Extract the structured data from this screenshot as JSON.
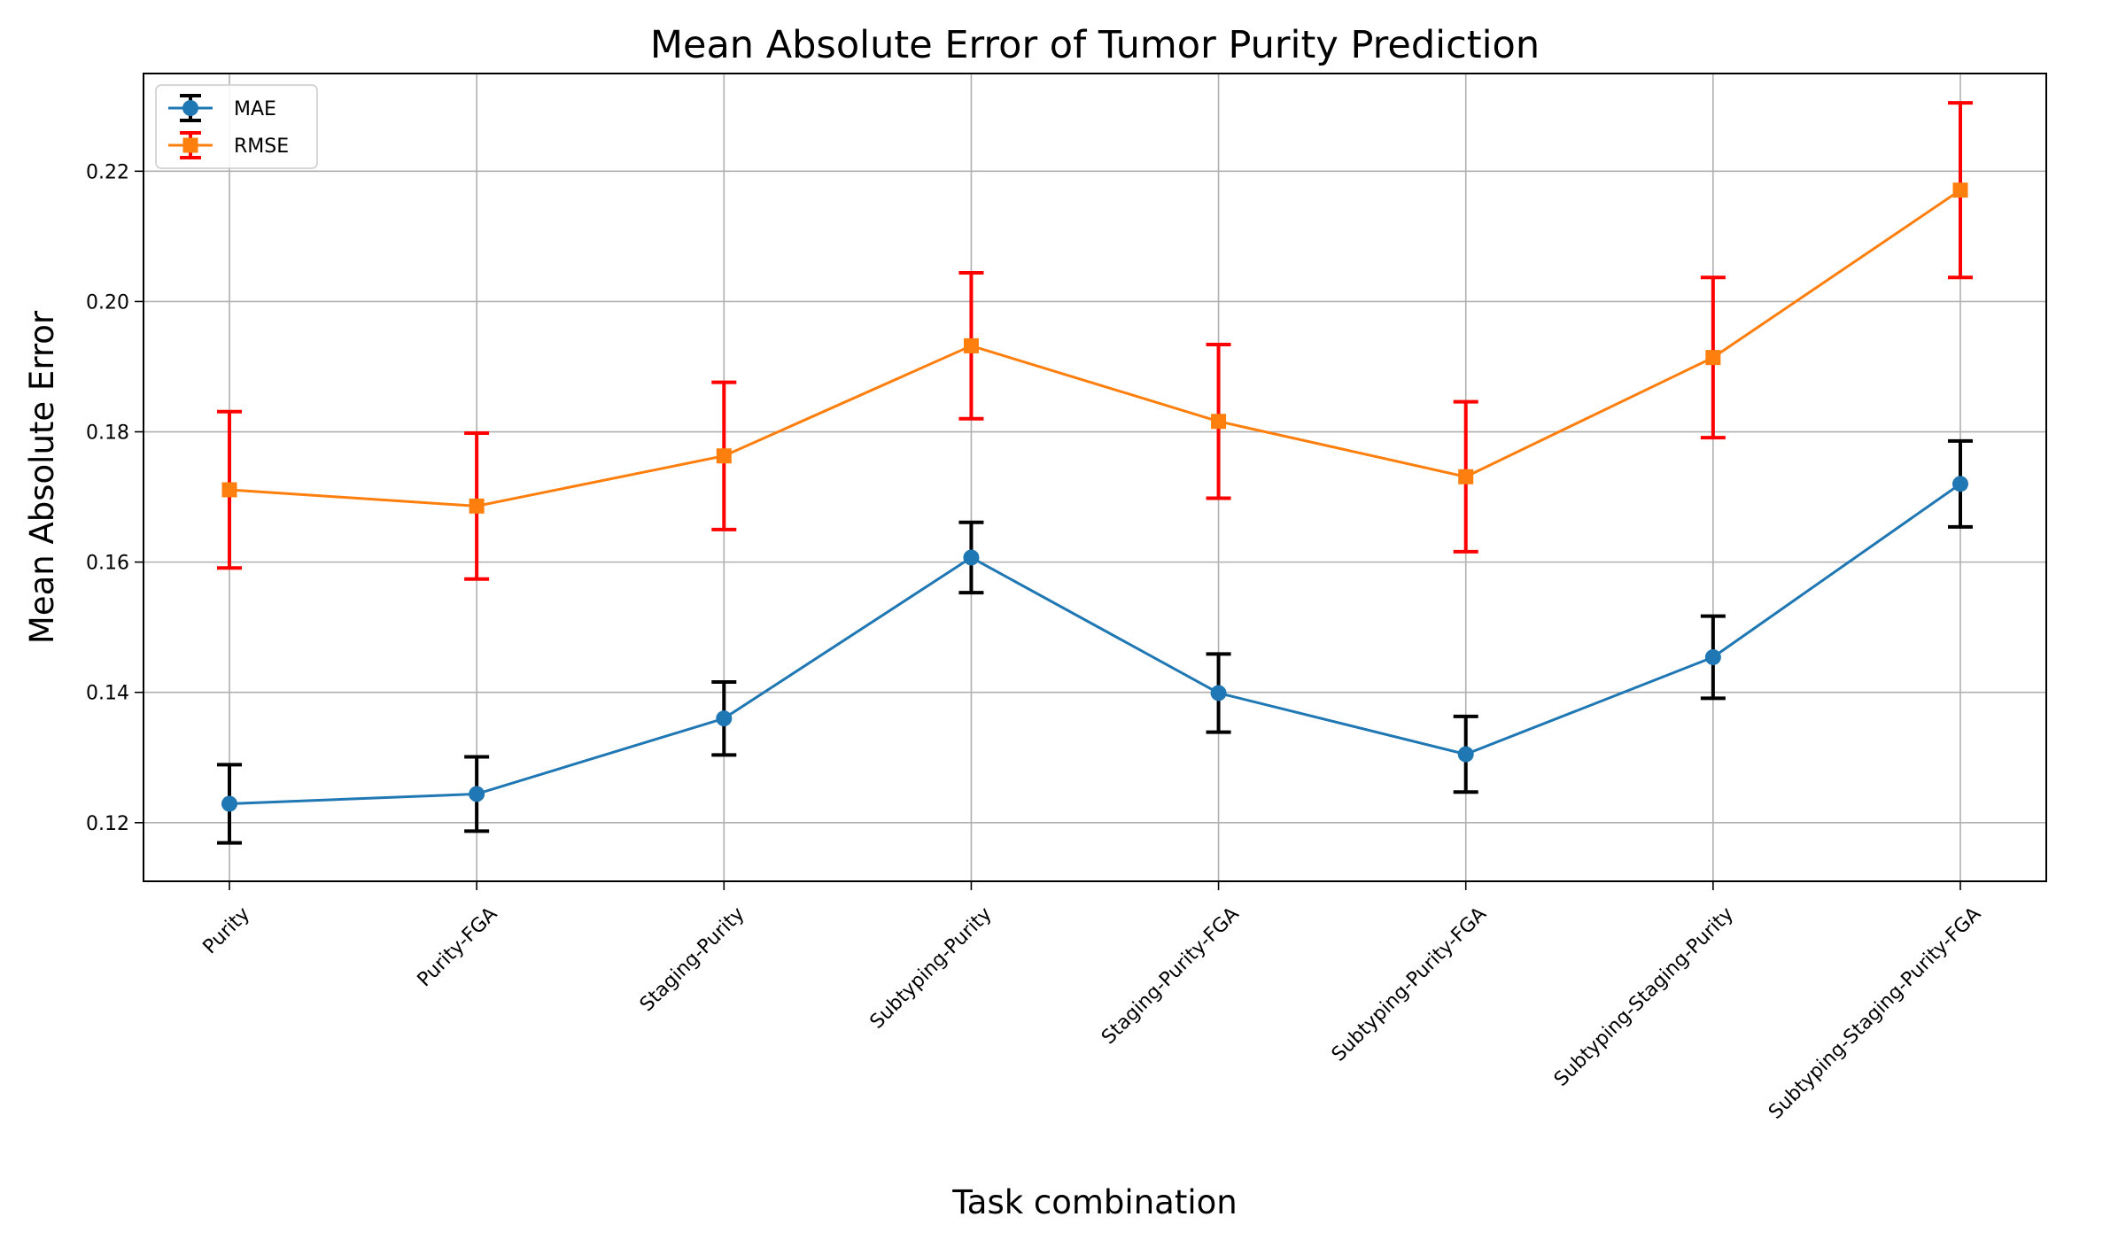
{
  "chart_data": {
    "type": "line",
    "title": "Mean Absolute Error of Tumor Purity Prediction",
    "xlabel": "Task combination",
    "ylabel": "Mean Absolute Error",
    "categories": [
      "Purity",
      "Purity-FGA",
      "Staging-Purity",
      "Subtyping-Purity",
      "Staging-Purity-FGA",
      "Subtyping-Purity-FGA",
      "Subtyping-Staging-Purity",
      "Subtyping-Staging-Purity-FGA"
    ],
    "ylim": [
      0.111,
      0.235
    ],
    "yticks": [
      "0.12",
      "0.14",
      "0.16",
      "0.18",
      "0.20",
      "0.22"
    ],
    "grid": true,
    "legend_position": "upper-left",
    "series": [
      {
        "name": "MAE",
        "color": "#1f77b4",
        "error_color": "#000000",
        "marker": "circle",
        "values": [
          0.1229,
          0.1244,
          0.136,
          0.1607,
          0.1399,
          0.1305,
          0.1454,
          0.172
        ],
        "errors": [
          0.006,
          0.0057,
          0.0056,
          0.0054,
          0.006,
          0.0058,
          0.0063,
          0.0066
        ]
      },
      {
        "name": "RMSE",
        "color": "#ff7f0e",
        "error_color": "#ff0000",
        "marker": "square",
        "values": [
          0.1711,
          0.1686,
          0.1763,
          0.1932,
          0.1816,
          0.1731,
          0.1914,
          0.2171
        ],
        "errors": [
          0.012,
          0.0112,
          0.0113,
          0.0112,
          0.0118,
          0.0115,
          0.0123,
          0.0134
        ]
      }
    ]
  }
}
